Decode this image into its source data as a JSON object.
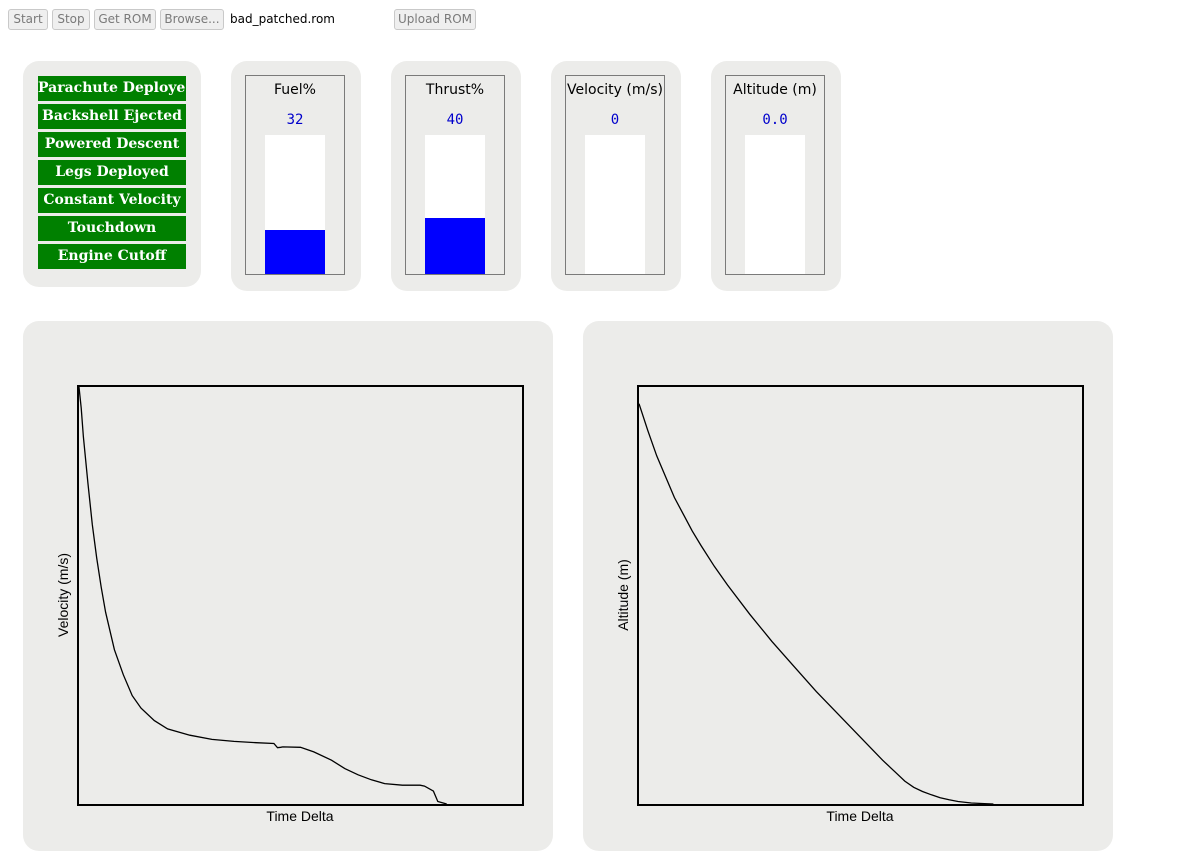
{
  "toolbar": {
    "start_label": "Start",
    "stop_label": "Stop",
    "get_rom_label": "Get ROM",
    "browse_label": "Browse...",
    "filename": "bad_patched.rom",
    "upload_label": "Upload ROM"
  },
  "status": {
    "color": "#008000",
    "items": [
      "Parachute Deployed",
      "Backshell Ejected",
      "Powered Descent",
      "Legs Deployed",
      "Constant Velocity",
      "Touchdown",
      "Engine Cutoff"
    ]
  },
  "gauges": [
    {
      "label": "Fuel%",
      "value": "32",
      "fill_percent": 32
    },
    {
      "label": "Thrust%",
      "value": "40",
      "fill_percent": 40
    },
    {
      "label": "Velocity (m/s)",
      "value": "0",
      "fill_percent": 0
    },
    {
      "label": "Altitude (m)",
      "value": "0.0",
      "fill_percent": 0
    }
  ],
  "colors": {
    "gauge_fill": "#0000ff",
    "value_text": "#0000cc"
  },
  "chart_data": [
    {
      "type": "line",
      "title": "",
      "xlabel": "Time Delta",
      "ylabel": "Velocity (m/s)",
      "grid": false,
      "xlim": [
        0,
        100
      ],
      "ylim": [
        0,
        100
      ],
      "x": [
        0,
        0.5,
        1,
        2,
        3,
        4,
        5,
        6,
        8,
        10,
        12,
        14,
        17,
        20,
        25,
        30,
        35,
        40,
        44,
        44.8,
        45.5,
        46,
        50,
        53,
        57,
        60,
        63,
        66,
        69,
        73,
        77,
        78,
        80,
        81,
        82,
        83
      ],
      "y": [
        100,
        95,
        88,
        77,
        67,
        59,
        52,
        46,
        37,
        31,
        26,
        23,
        20,
        18,
        16.5,
        15.5,
        15,
        14.7,
        14.5,
        13.5,
        13.6,
        13.7,
        13.6,
        12.5,
        10.5,
        8.5,
        7,
        5.8,
        4.9,
        4.5,
        4.5,
        4.3,
        3.1,
        0.6,
        0.3,
        0
      ]
    },
    {
      "type": "line",
      "title": "",
      "xlabel": "Time Delta",
      "ylabel": "Altitude (m)",
      "grid": false,
      "xlim": [
        0,
        100
      ],
      "ylim": [
        0,
        100
      ],
      "x": [
        0,
        2,
        4,
        6,
        8,
        10,
        12,
        14,
        17,
        20,
        25,
        30,
        35,
        40,
        45,
        50,
        55,
        58,
        60,
        62,
        64,
        66,
        68,
        70,
        72,
        75,
        78,
        80
      ],
      "y": [
        96,
        89.5,
        83.5,
        78.5,
        73.5,
        69.5,
        65.5,
        62,
        57,
        52.5,
        45.5,
        39,
        33,
        27,
        21.5,
        16,
        10.5,
        7.5,
        5.5,
        4,
        3,
        2.2,
        1.5,
        1,
        0.6,
        0.25,
        0.1,
        0
      ]
    }
  ]
}
